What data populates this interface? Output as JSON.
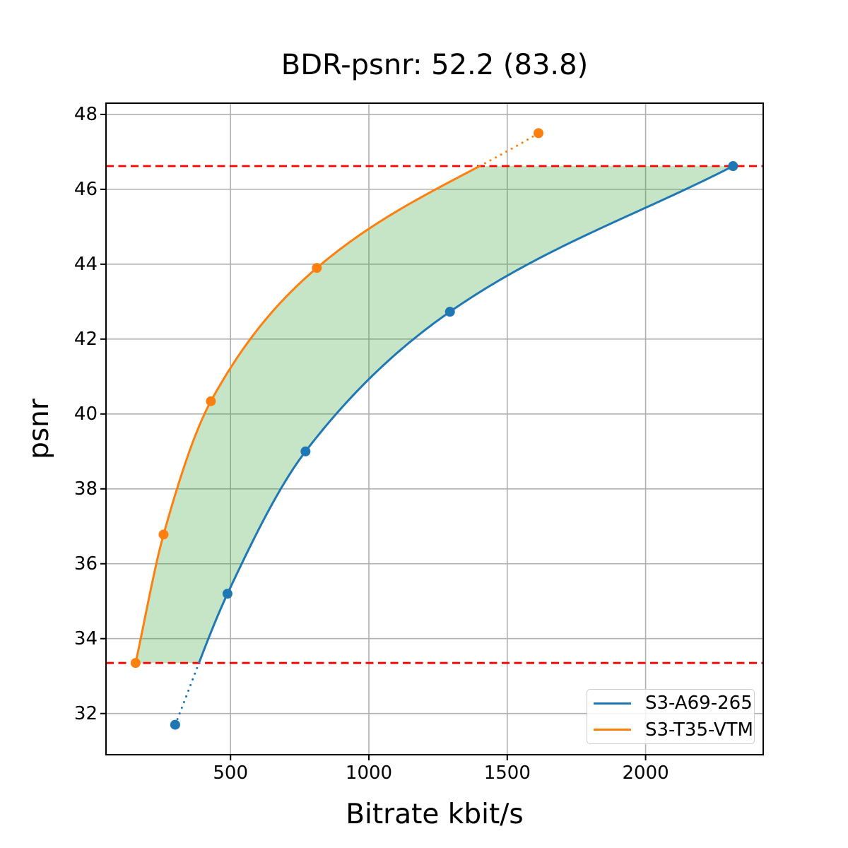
{
  "figure": {
    "background": "#ffffff"
  },
  "chart_data": {
    "type": "line",
    "title": "BDR-psnr: 52.2 (83.8)",
    "xlabel": "Bitrate kbit/s",
    "ylabel": "psnr",
    "xlim": [
      50,
      2425
    ],
    "ylim": [
      30.9,
      48.3
    ],
    "x_ticks": [
      500,
      1000,
      1500,
      2000
    ],
    "y_ticks": [
      32,
      34,
      36,
      38,
      40,
      42,
      44,
      46,
      48
    ],
    "grid": true,
    "grid_color": "#b0b0b0",
    "axis_color": "#000000",
    "series": [
      {
        "name": "S3-A69-265",
        "color": "#1f77b4",
        "points": [
          [
            300,
            31.7
          ],
          [
            489,
            35.2
          ],
          [
            771,
            39.0
          ],
          [
            1293,
            42.73
          ],
          [
            2316,
            46.62
          ]
        ]
      },
      {
        "name": "S3-T35-VTM",
        "color": "#ff7f0e",
        "points": [
          [
            157,
            33.35
          ],
          [
            258,
            36.78
          ],
          [
            429,
            40.34
          ],
          [
            812,
            43.9
          ],
          [
            1613,
            47.5
          ]
        ]
      }
    ],
    "overlap_band": {
      "psnr_min": 33.35,
      "psnr_max": 46.62,
      "line_color": "#ff0000",
      "fill_color": "#2ca02c",
      "fill_opacity": 0.27
    },
    "legend": {
      "position": "lower right"
    }
  }
}
